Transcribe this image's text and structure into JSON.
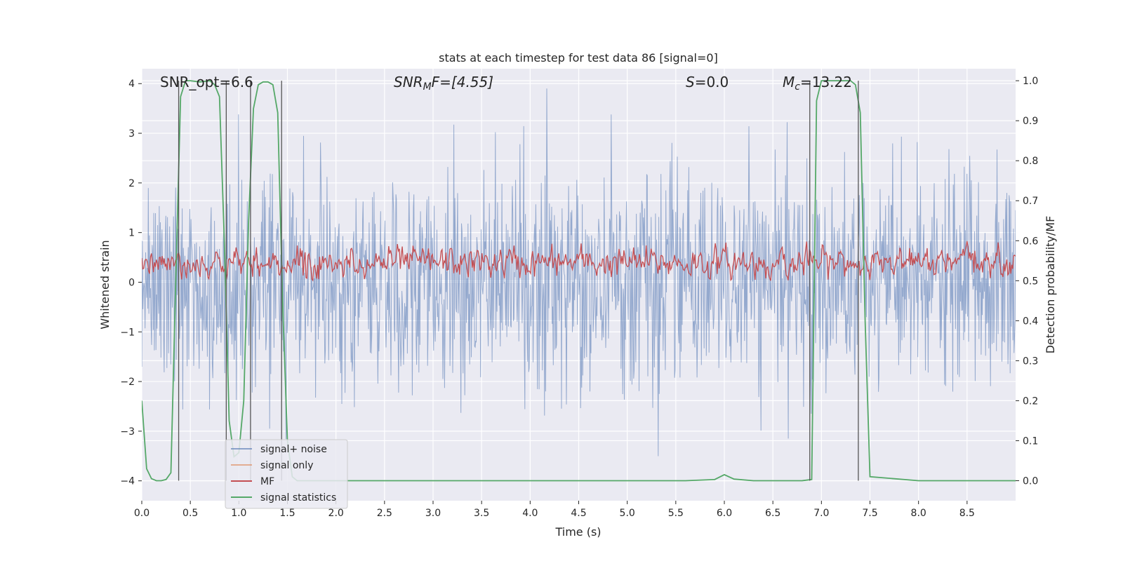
{
  "chart_data": {
    "type": "line",
    "title": "stats at each timestep for test data 86 [signal=0]",
    "xlabel": "Time (s)",
    "ylabel_left": "Whitened strain",
    "ylabel_right": "Detection probability/MF",
    "xlim": [
      0.0,
      9.0
    ],
    "ylim_left": [
      -4.4,
      4.3
    ],
    "ylim_right": [
      -0.05,
      1.03
    ],
    "x_ticks": [
      "0.0",
      "0.5",
      "1.0",
      "1.5",
      "2.0",
      "2.5",
      "3.0",
      "3.5",
      "4.0",
      "4.5",
      "5.0",
      "5.5",
      "6.0",
      "6.5",
      "7.0",
      "7.5",
      "8.0",
      "8.5"
    ],
    "y_left_ticks": [
      "4",
      "3",
      "2",
      "1",
      "0",
      "−1",
      "−2",
      "−3",
      "−4"
    ],
    "y_right_ticks": [
      "1.0",
      "0.9",
      "0.8",
      "0.7",
      "0.6",
      "0.5",
      "0.4",
      "0.3",
      "0.2",
      "0.1",
      "0.0"
    ],
    "grid": true,
    "annotations": {
      "snr_opt": "SNR_opt=6.6",
      "snr_mf_sym": "SNR",
      "snr_mf_sub": "M",
      "snr_mf_rest": "F=[4.55]",
      "s_sym": "S",
      "s_rest": "=0.0",
      "mc_sym": "M",
      "mc_sub": "c",
      "mc_rest": "=13.22"
    },
    "series": [
      {
        "name": "signal+ noise",
        "color": "#4c72b0",
        "axis": "left",
        "note": "noise band roughly within [-2.5, 2.5] with spikes to about +3.9 / -4.0"
      },
      {
        "name": "signal only",
        "color": "#dd8452",
        "axis": "left",
        "note": "not visible (zero)"
      },
      {
        "name": "MF",
        "color": "#c44e52",
        "axis": "right",
        "note": "fluctuates between about 0.50 and 0.60"
      },
      {
        "name": "signal statistics",
        "color": "#55a868",
        "axis": "right",
        "x": [
          0.0,
          0.05,
          0.1,
          0.15,
          0.2,
          0.25,
          0.3,
          0.35,
          0.4,
          0.45,
          0.5,
          0.6,
          0.7,
          0.75,
          0.8,
          0.85,
          0.9,
          0.95,
          1.0,
          1.05,
          1.1,
          1.15,
          1.2,
          1.25,
          1.3,
          1.35,
          1.4,
          1.45,
          1.5,
          1.55,
          1.6,
          1.8,
          2.0,
          5.6,
          5.9,
          6.0,
          6.1,
          6.3,
          6.8,
          6.9,
          6.95,
          7.0,
          7.3,
          7.35,
          7.4,
          7.45,
          7.5,
          8.0,
          9.0
        ],
        "y": [
          0.2,
          0.03,
          0.005,
          0.0,
          0.0,
          0.003,
          0.02,
          0.5,
          0.96,
          1.0,
          1.0,
          0.997,
          1.0,
          0.99,
          0.96,
          0.6,
          0.15,
          0.06,
          0.07,
          0.2,
          0.65,
          0.93,
          0.99,
          0.997,
          0.997,
          0.99,
          0.92,
          0.45,
          0.1,
          0.01,
          0.0,
          0.0,
          0.0,
          0.0,
          0.003,
          0.015,
          0.004,
          0.0,
          0.0,
          0.003,
          0.95,
          1.0,
          1.0,
          0.99,
          0.92,
          0.4,
          0.01,
          0.0,
          0.0
        ]
      }
    ],
    "vlines_x": [
      0.38,
      0.87,
      1.12,
      1.44,
      6.88,
      7.38
    ],
    "legend": {
      "position": "lower-left",
      "entries": [
        {
          "label": "signal+ noise",
          "color": "#4c72b0"
        },
        {
          "label": "signal only",
          "color": "#dd8452"
        },
        {
          "label": "MF",
          "color": "#c44e52"
        },
        {
          "label": "signal statistics",
          "color": "#55a868"
        }
      ]
    }
  }
}
